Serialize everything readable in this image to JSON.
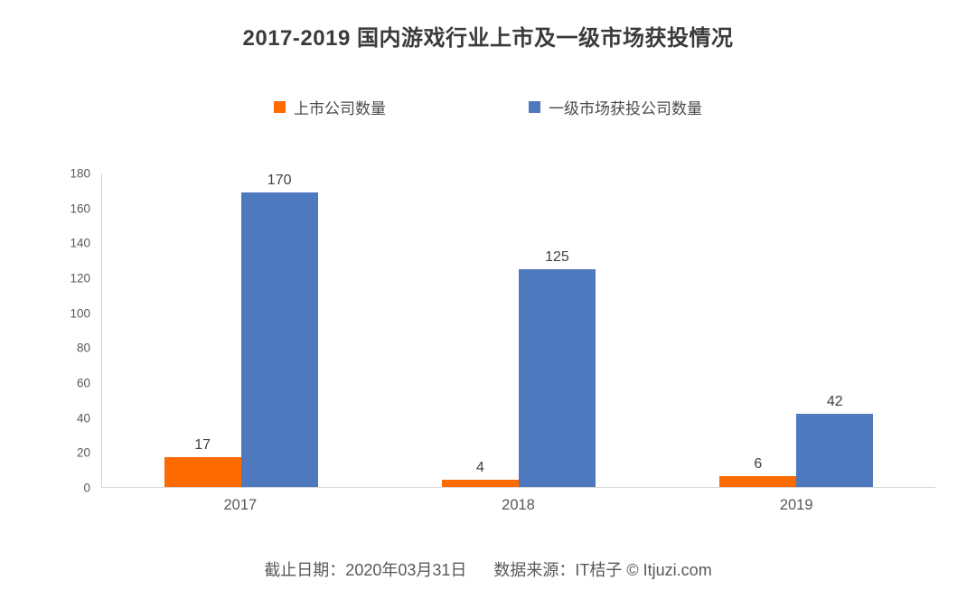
{
  "page": {
    "background": "#ffffff"
  },
  "header": {
    "title": "2017-2019 国内游戏行业上市及一级市场获投情况"
  },
  "footer": {
    "date": "截止日期：2020年03月31日",
    "source": "数据来源：IT桔子 © Itjuzi.com"
  },
  "colors": {
    "orange_series": "#fc6a00",
    "blue_series": "#4e79be",
    "title_text": "#3b3b3b",
    "axis_text": "#595959",
    "value_text": "#404040",
    "axis_line": "#d6d6d6"
  },
  "chart_data": {
    "type": "bar",
    "title": "2017-2019 国内游戏行业上市及一级市场获投情况",
    "categories": [
      "2017",
      "2018",
      "2019"
    ],
    "series": [
      {
        "name": "上市公司数量",
        "color": "#fc6a00",
        "values": [
          17,
          4,
          6
        ]
      },
      {
        "name": "一级市场获投公司数量",
        "color": "#4e79be",
        "values": [
          170,
          125,
          42
        ]
      }
    ],
    "xlabel": "",
    "ylabel": "",
    "ylim": [
      0,
      180
    ],
    "ytick_step": 20,
    "grid": false,
    "legend_position": "top",
    "bar_value_labels": true
  }
}
